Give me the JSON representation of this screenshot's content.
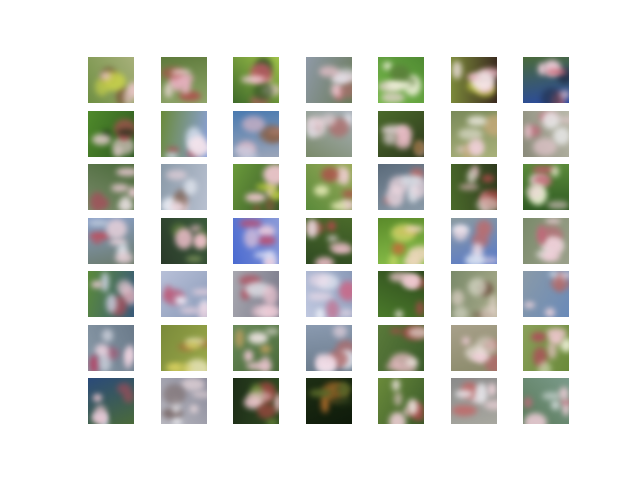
{
  "grid": {
    "rows": 7,
    "cols": 7,
    "tiles": [
      {
        "bg": [
          "#a7b07a",
          "#6f8f43"
        ],
        "blobs": [
          "#f0c8d0",
          "#7a5a3a",
          "#c9d24a"
        ]
      },
      {
        "bg": [
          "#8fa56a",
          "#5e7a3b"
        ],
        "blobs": [
          "#e8b0c0",
          "#b04a4a",
          "#f4e0e0"
        ]
      },
      {
        "bg": [
          "#9fc24a",
          "#3f6a2a"
        ],
        "blobs": [
          "#f2d0d8",
          "#c85a6a",
          "#2f4a26"
        ]
      },
      {
        "bg": [
          "#8f9aa7",
          "#6a7a5a"
        ],
        "blobs": [
          "#f4c7d2",
          "#b56a6a",
          "#e6e6ee"
        ]
      },
      {
        "bg": [
          "#76b84a",
          "#4f8a32"
        ],
        "blobs": [
          "#eef0d8",
          "#5a7a3a",
          "#f4d8e0"
        ]
      },
      {
        "bg": [
          "#7c8a3a",
          "#3a2a1f"
        ],
        "blobs": [
          "#f0b8c8",
          "#c8d040",
          "#f8e8ec"
        ]
      },
      {
        "bg": [
          "#2a4aa0",
          "#4a6a3a"
        ],
        "blobs": [
          "#f4d0dc",
          "#d06a7a",
          "#22304a"
        ]
      },
      {
        "bg": [
          "#4f8a2a",
          "#2f5a22"
        ],
        "blobs": [
          "#f4d6de",
          "#c04a5a",
          "#1e2e18"
        ]
      },
      {
        "bg": [
          "#8aa0d8",
          "#6a8a3a"
        ],
        "blobs": [
          "#f4e4ec",
          "#b84a5a",
          "#d8e0f0"
        ]
      },
      {
        "bg": [
          "#9aa4b8",
          "#4a7ab0"
        ],
        "blobs": [
          "#f0c0cc",
          "#8a5a3a",
          "#c8d4e8"
        ]
      },
      {
        "bg": [
          "#a8b0b8",
          "#7a8a6a"
        ],
        "blobs": [
          "#f4dce4",
          "#b06a6a",
          "#e4e4ec"
        ]
      },
      {
        "bg": [
          "#2f3a1e",
          "#4a6a2a"
        ],
        "blobs": [
          "#f0c0cc",
          "#8a6a3a",
          "#e8d8dc"
        ]
      },
      {
        "bg": [
          "#a8b07a",
          "#7a8a5a"
        ],
        "blobs": [
          "#f0d0d8",
          "#c8aa7a",
          "#e6e4d8"
        ]
      },
      {
        "bg": [
          "#b8b8a8",
          "#8a8a7a"
        ],
        "blobs": [
          "#f4d0dc",
          "#c06a7a",
          "#e8e8e8"
        ]
      },
      {
        "bg": [
          "#7a8a6a",
          "#4a6a3a"
        ],
        "blobs": [
          "#f4d0dc",
          "#a84a5a",
          "#e8e0e0"
        ]
      },
      {
        "bg": [
          "#b8c0d0",
          "#8a9aa8"
        ],
        "blobs": [
          "#f0d8e0",
          "#7a5a4a",
          "#e6eaf2"
        ]
      },
      {
        "bg": [
          "#6a9a3a",
          "#3a5a2a"
        ],
        "blobs": [
          "#f0c8d0",
          "#7a5a3a",
          "#c0d040"
        ]
      },
      {
        "bg": [
          "#9aaa5a",
          "#5a8a3a"
        ],
        "blobs": [
          "#f4d0d8",
          "#b04a4a",
          "#e0e6b0"
        ]
      },
      {
        "bg": [
          "#8a9aa8",
          "#5a6a7a"
        ],
        "blobs": [
          "#f4dce4",
          "#b06a6a",
          "#dce0e8"
        ]
      },
      {
        "bg": [
          "#4a6a2a",
          "#2f3a1e"
        ],
        "blobs": [
          "#f0c0cc",
          "#b04a4a",
          "#e8e0d8"
        ]
      },
      {
        "bg": [
          "#5a8a3a",
          "#2f5a22"
        ],
        "blobs": [
          "#f4d6de",
          "#c05a6a",
          "#e8f0d0"
        ]
      },
      {
        "bg": [
          "#8aa0c8",
          "#6a7a6a"
        ],
        "blobs": [
          "#f4d8e0",
          "#c04a5a",
          "#e6eaf2"
        ]
      },
      {
        "bg": [
          "#3a5a3a",
          "#2a3a2a"
        ],
        "blobs": [
          "#f0c0cc",
          "#5a7a3a",
          "#9ab06a"
        ]
      },
      {
        "bg": [
          "#4a6ad0",
          "#8a9ad8"
        ],
        "blobs": [
          "#f4d0dc",
          "#c04a6a",
          "#e8e8f8"
        ]
      },
      {
        "bg": [
          "#2f4a22",
          "#4a6a2a"
        ],
        "blobs": [
          "#f0c0cc",
          "#b04a4a",
          "#e8d8dc"
        ]
      },
      {
        "bg": [
          "#8ac04a",
          "#5a8a2a"
        ],
        "blobs": [
          "#f0d8c0",
          "#c86a3a",
          "#d8e070"
        ]
      },
      {
        "bg": [
          "#5a7ac8",
          "#8a9aa0"
        ],
        "blobs": [
          "#f4e0e8",
          "#c06a6a",
          "#e8eef8"
        ]
      },
      {
        "bg": [
          "#9aa08a",
          "#7a8a6a"
        ],
        "blobs": [
          "#f4d0dc",
          "#c06a7a",
          "#e8e0e0"
        ]
      },
      {
        "bg": [
          "#3a5a7a",
          "#5a8a3a"
        ],
        "blobs": [
          "#f4d0dc",
          "#b04a5a",
          "#c8d0e0"
        ]
      },
      {
        "bg": [
          "#b8c0d8",
          "#8a9ab8"
        ],
        "blobs": [
          "#f4d8e4",
          "#c04a6a",
          "#e8ecf8"
        ]
      },
      {
        "bg": [
          "#a8a8b0",
          "#7a7a8a"
        ],
        "blobs": [
          "#f0c8d4",
          "#b04a5a",
          "#e8e8ee"
        ]
      },
      {
        "bg": [
          "#c0c8e0",
          "#8a9ab8"
        ],
        "blobs": [
          "#f4e0ec",
          "#c86a8a",
          "#eef0f8"
        ]
      },
      {
        "bg": [
          "#4a7a2a",
          "#2f4a1e"
        ],
        "blobs": [
          "#f0c8d0",
          "#a84a4a",
          "#e8e0d8"
        ]
      },
      {
        "bg": [
          "#a8aa8a",
          "#7a8a6a"
        ],
        "blobs": [
          "#e8d8d0",
          "#6a4a3a",
          "#d8d8c8"
        ]
      },
      {
        "bg": [
          "#6a8ab8",
          "#8a9aa8"
        ],
        "blobs": [
          "#f4d8e0",
          "#b06a6a",
          "#dce4f0"
        ]
      },
      {
        "bg": [
          "#8a9aa8",
          "#6a7a8a"
        ],
        "blobs": [
          "#f4d8e4",
          "#b04a6a",
          "#e6e6f0"
        ]
      },
      {
        "bg": [
          "#9aa84a",
          "#7a8a3a"
        ],
        "blobs": [
          "#d8d060",
          "#a86a3a",
          "#e8e4b8"
        ]
      },
      {
        "bg": [
          "#6a8a5a",
          "#4a6a3a"
        ],
        "blobs": [
          "#f0c8d4",
          "#c0a060",
          "#e8e0dc"
        ]
      },
      {
        "bg": [
          "#8a9ab0",
          "#6a7a8a"
        ],
        "blobs": [
          "#f4dce6",
          "#b06a6a",
          "#e8ecf4"
        ]
      },
      {
        "bg": [
          "#3a5a2a",
          "#5a7a3a"
        ],
        "blobs": [
          "#f0c0cc",
          "#a84a4a",
          "#e8e0d8"
        ]
      },
      {
        "bg": [
          "#a8a08a",
          "#8a8a6a"
        ],
        "blobs": [
          "#f4d0dc",
          "#b06a6a",
          "#e8e0d8"
        ]
      },
      {
        "bg": [
          "#8aa05a",
          "#6a8a3a"
        ],
        "blobs": [
          "#f0c8d0",
          "#b04a5a",
          "#e8ecd0"
        ]
      },
      {
        "bg": [
          "#2a4a7a",
          "#4a6a3a"
        ],
        "blobs": [
          "#f0c8d4",
          "#b04a5a",
          "#c8d0e0"
        ]
      },
      {
        "bg": [
          "#b8b8c0",
          "#8a8a9a"
        ],
        "blobs": [
          "#e8d8dc",
          "#7a6a6a",
          "#f0f0f4"
        ]
      },
      {
        "bg": [
          "#2f4a22",
          "#1e2e18"
        ],
        "blobs": [
          "#f0c8d0",
          "#c04a4a",
          "#6a8a3a"
        ]
      },
      {
        "bg": [
          "#0e1a0a",
          "#1e2e14"
        ],
        "blobs": [
          "#5a6a2a",
          "#a86a2a",
          "#2a3a1a"
        ]
      },
      {
        "bg": [
          "#6a8a3a",
          "#3a5a2a"
        ],
        "blobs": [
          "#f0d0d8",
          "#a84a4a",
          "#e8e0d8"
        ]
      },
      {
        "bg": [
          "#a8a8a0",
          "#8a8a8a"
        ],
        "blobs": [
          "#f4d8e0",
          "#c06a6a",
          "#ecebf0"
        ]
      },
      {
        "bg": [
          "#7a9a8a",
          "#5a7a5a"
        ],
        "blobs": [
          "#f4d0dc",
          "#c06a7a",
          "#e0e6e8"
        ]
      }
    ]
  }
}
